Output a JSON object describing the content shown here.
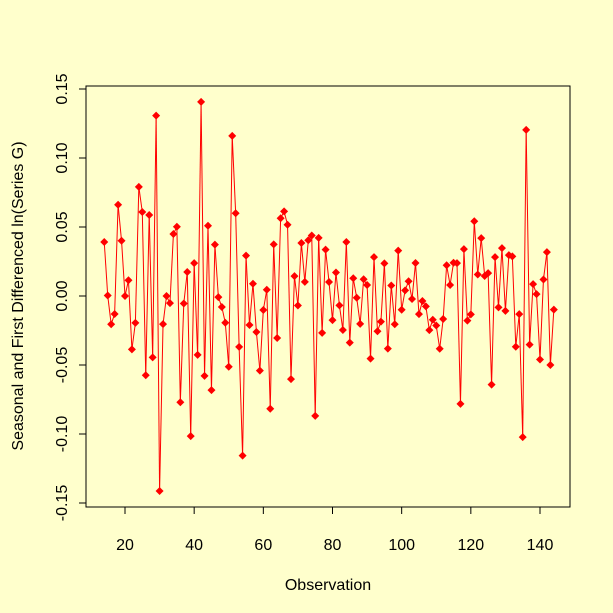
{
  "chart_data": {
    "type": "line",
    "title": "",
    "xlabel": "Observation",
    "ylabel": "Seasonal and First Differenced ln(Series G)",
    "xlim": [
      8.8,
      149.2
    ],
    "ylim": [
      -0.155,
      0.15
    ],
    "x_ticks": [
      20,
      40,
      60,
      80,
      100,
      120,
      140
    ],
    "y_ticks": [
      -0.15,
      -0.1,
      -0.05,
      0.0,
      0.05,
      0.1,
      0.15
    ],
    "y_tick_labels": [
      "-0.15",
      "-0.10",
      "-0.05",
      "0.00",
      "0.05",
      "0.10",
      "0.15"
    ],
    "grid": false,
    "colors": {
      "background": "#ffffcc",
      "series": "#ff0000"
    },
    "marker": "diamond",
    "x_start": 14,
    "values": [
      0.0391,
      0.0004,
      -0.0205,
      -0.013,
      0.0661,
      0.04,
      0.0,
      0.0114,
      -0.0387,
      -0.0195,
      0.0791,
      0.0609,
      -0.0574,
      0.0587,
      -0.0445,
      0.1307,
      -0.1413,
      -0.0204,
      0.0,
      -0.0052,
      0.0449,
      0.0502,
      -0.077,
      -0.0054,
      0.0174,
      -0.1015,
      0.0238,
      -0.0427,
      0.1407,
      -0.0579,
      0.0509,
      -0.0682,
      0.0372,
      -0.0008,
      -0.008,
      -0.0194,
      -0.0513,
      0.116,
      0.06,
      -0.0369,
      -0.1157,
      0.0293,
      -0.021,
      0.0089,
      -0.0261,
      -0.0541,
      -0.0101,
      0.0045,
      -0.0817,
      0.0374,
      -0.0304,
      0.0563,
      0.0613,
      0.0516,
      -0.0602,
      0.0144,
      -0.0069,
      0.0384,
      0.0102,
      0.0404,
      0.0438,
      -0.0869,
      0.0421,
      -0.0267,
      0.0336,
      0.0101,
      -0.0175,
      0.017,
      -0.0068,
      -0.0246,
      0.0391,
      -0.0338,
      0.0129,
      -0.0013,
      -0.0202,
      0.0121,
      0.008,
      -0.0454,
      0.0282,
      -0.0255,
      -0.0186,
      0.0236,
      -0.0381,
      0.0076,
      -0.0205,
      0.0329,
      -0.01,
      0.0041,
      0.0107,
      -0.0022,
      0.0239,
      -0.0131,
      -0.0036,
      -0.0075,
      -0.0247,
      -0.0172,
      -0.0214,
      -0.0382,
      -0.0167,
      0.0223,
      0.008,
      0.0241,
      0.0238,
      -0.0782,
      0.034,
      -0.0178,
      -0.0133,
      0.0542,
      0.0156,
      0.0419,
      0.0145,
      0.0166,
      -0.0642,
      0.0282,
      -0.0082,
      0.0347,
      -0.0108,
      0.0296,
      0.0287,
      -0.0368,
      -0.0131,
      -0.1023,
      0.1204,
      -0.0352,
      0.0086,
      0.0014,
      -0.046,
      0.012,
      0.0318,
      -0.05,
      -0.0099
    ]
  }
}
